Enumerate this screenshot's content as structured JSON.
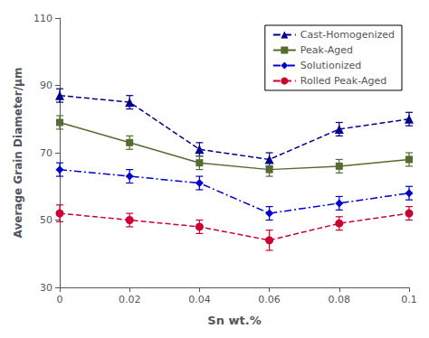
{
  "chart_data": {
    "type": "line",
    "xlabel": "Sn wt.%",
    "ylabel": "Average Grain Diameter/μm",
    "x": [
      0,
      0.02,
      0.04,
      0.06,
      0.08,
      0.1
    ],
    "xlim": [
      0,
      0.1
    ],
    "xticks": [
      0,
      0.02,
      0.04,
      0.06,
      0.08,
      0.1
    ],
    "ylim": [
      30,
      110
    ],
    "yticks": [
      30,
      50,
      70,
      90,
      110
    ],
    "grid": false,
    "legend": "upper right",
    "series": [
      {
        "name": "Cast-Homogenized",
        "color": "#00008B",
        "marker": "triangle",
        "line_style": "dashed",
        "values": [
          87,
          85,
          71,
          68,
          77,
          80
        ],
        "errors": [
          2,
          2,
          2,
          2,
          2,
          2
        ]
      },
      {
        "name": "Peak-Aged",
        "color": "#556B2F",
        "marker": "square",
        "line_style": "solid",
        "values": [
          79,
          73,
          67,
          65,
          66,
          68
        ],
        "errors": [
          2,
          2,
          2,
          2,
          2,
          2
        ]
      },
      {
        "name": "Solutionized",
        "color": "#0000CD",
        "marker": "diamond",
        "line_style": "dash-dot",
        "values": [
          65,
          63,
          61,
          52,
          55,
          58
        ],
        "errors": [
          2,
          2,
          2,
          2,
          2,
          2
        ]
      },
      {
        "name": "Rolled Peak-Aged",
        "color": "#CC0033",
        "marker": "circle",
        "line_style": "dashed",
        "values": [
          52,
          50,
          48,
          44,
          49,
          52
        ],
        "errors": [
          2.5,
          2,
          2,
          3,
          2,
          2
        ]
      }
    ]
  }
}
